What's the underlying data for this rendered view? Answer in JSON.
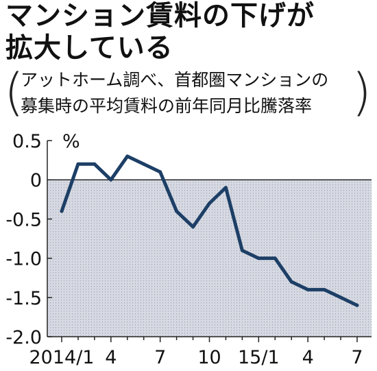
{
  "headline": {
    "line1": "マンション賃料の下げが",
    "line2": "拡大している"
  },
  "subtitle": {
    "line1": "アットホーム調べ、首都圏マンションの",
    "line2": "募集時の平均賃料の前年同月比騰落率"
  },
  "colors": {
    "line": "#1d3f66",
    "negative_area": "#d6d9e2",
    "text": "#111111"
  },
  "chart_data": {
    "type": "line",
    "title": "マンション賃料の下げが拡大している",
    "subtitle": "アットホーム調べ、首都圏マンションの募集時の平均賃料の前年同月比騰落率",
    "unit": "%",
    "x": [
      "2014/1",
      "2014/2",
      "2014/3",
      "2014/4",
      "2014/5",
      "2014/6",
      "2014/7",
      "2014/8",
      "2014/9",
      "2014/10",
      "2014/11",
      "2014/12",
      "2015/1",
      "2015/2",
      "2015/3",
      "2015/4",
      "2015/5",
      "2015/6",
      "2015/7"
    ],
    "x_tick_labels": [
      {
        "index": 0,
        "label": "2014/1"
      },
      {
        "index": 3,
        "label": "4"
      },
      {
        "index": 6,
        "label": "7"
      },
      {
        "index": 9,
        "label": "10"
      },
      {
        "index": 12,
        "label": "15/1"
      },
      {
        "index": 15,
        "label": "4"
      },
      {
        "index": 18,
        "label": "7"
      }
    ],
    "series": [
      {
        "values": [
          -0.4,
          0.2,
          0.2,
          0.0,
          0.3,
          0.2,
          0.1,
          -0.4,
          -0.6,
          -0.3,
          -0.1,
          -0.9,
          -1.0,
          -1.0,
          -1.3,
          -1.4,
          -1.4,
          -1.5,
          -1.6
        ]
      }
    ],
    "y_tick_labels": [
      "0.5",
      "0",
      "-0.5",
      "-1.0",
      "-1.5",
      "-2.0"
    ],
    "ylim": [
      -2.0,
      0.5
    ],
    "negative_region_shaded": true,
    "grid": false
  }
}
